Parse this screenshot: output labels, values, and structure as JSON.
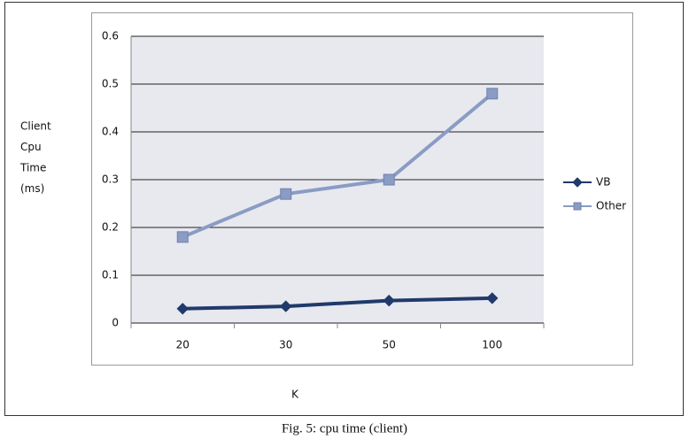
{
  "chart_data": {
    "type": "line",
    "y_label": [
      "Client",
      "Cpu",
      "Time",
      "(ms)"
    ],
    "x_label": "K",
    "caption": "Fig. 5: cpu time (client)",
    "categories": [
      "20",
      "30",
      "50",
      "100"
    ],
    "series": [
      {
        "name": "VB",
        "color": "#1f3a6b",
        "marker": "diamond",
        "values": [
          0.03,
          0.035,
          0.047,
          0.052
        ]
      },
      {
        "name": "Other",
        "color": "#8a9cc4",
        "marker": "square",
        "values": [
          0.18,
          0.27,
          0.3,
          0.48
        ]
      }
    ],
    "ylim": [
      0,
      0.6
    ],
    "yticks": [
      0,
      0.1,
      0.2,
      0.3,
      0.4,
      0.5,
      0.6
    ],
    "grid": true,
    "legend": "right"
  }
}
